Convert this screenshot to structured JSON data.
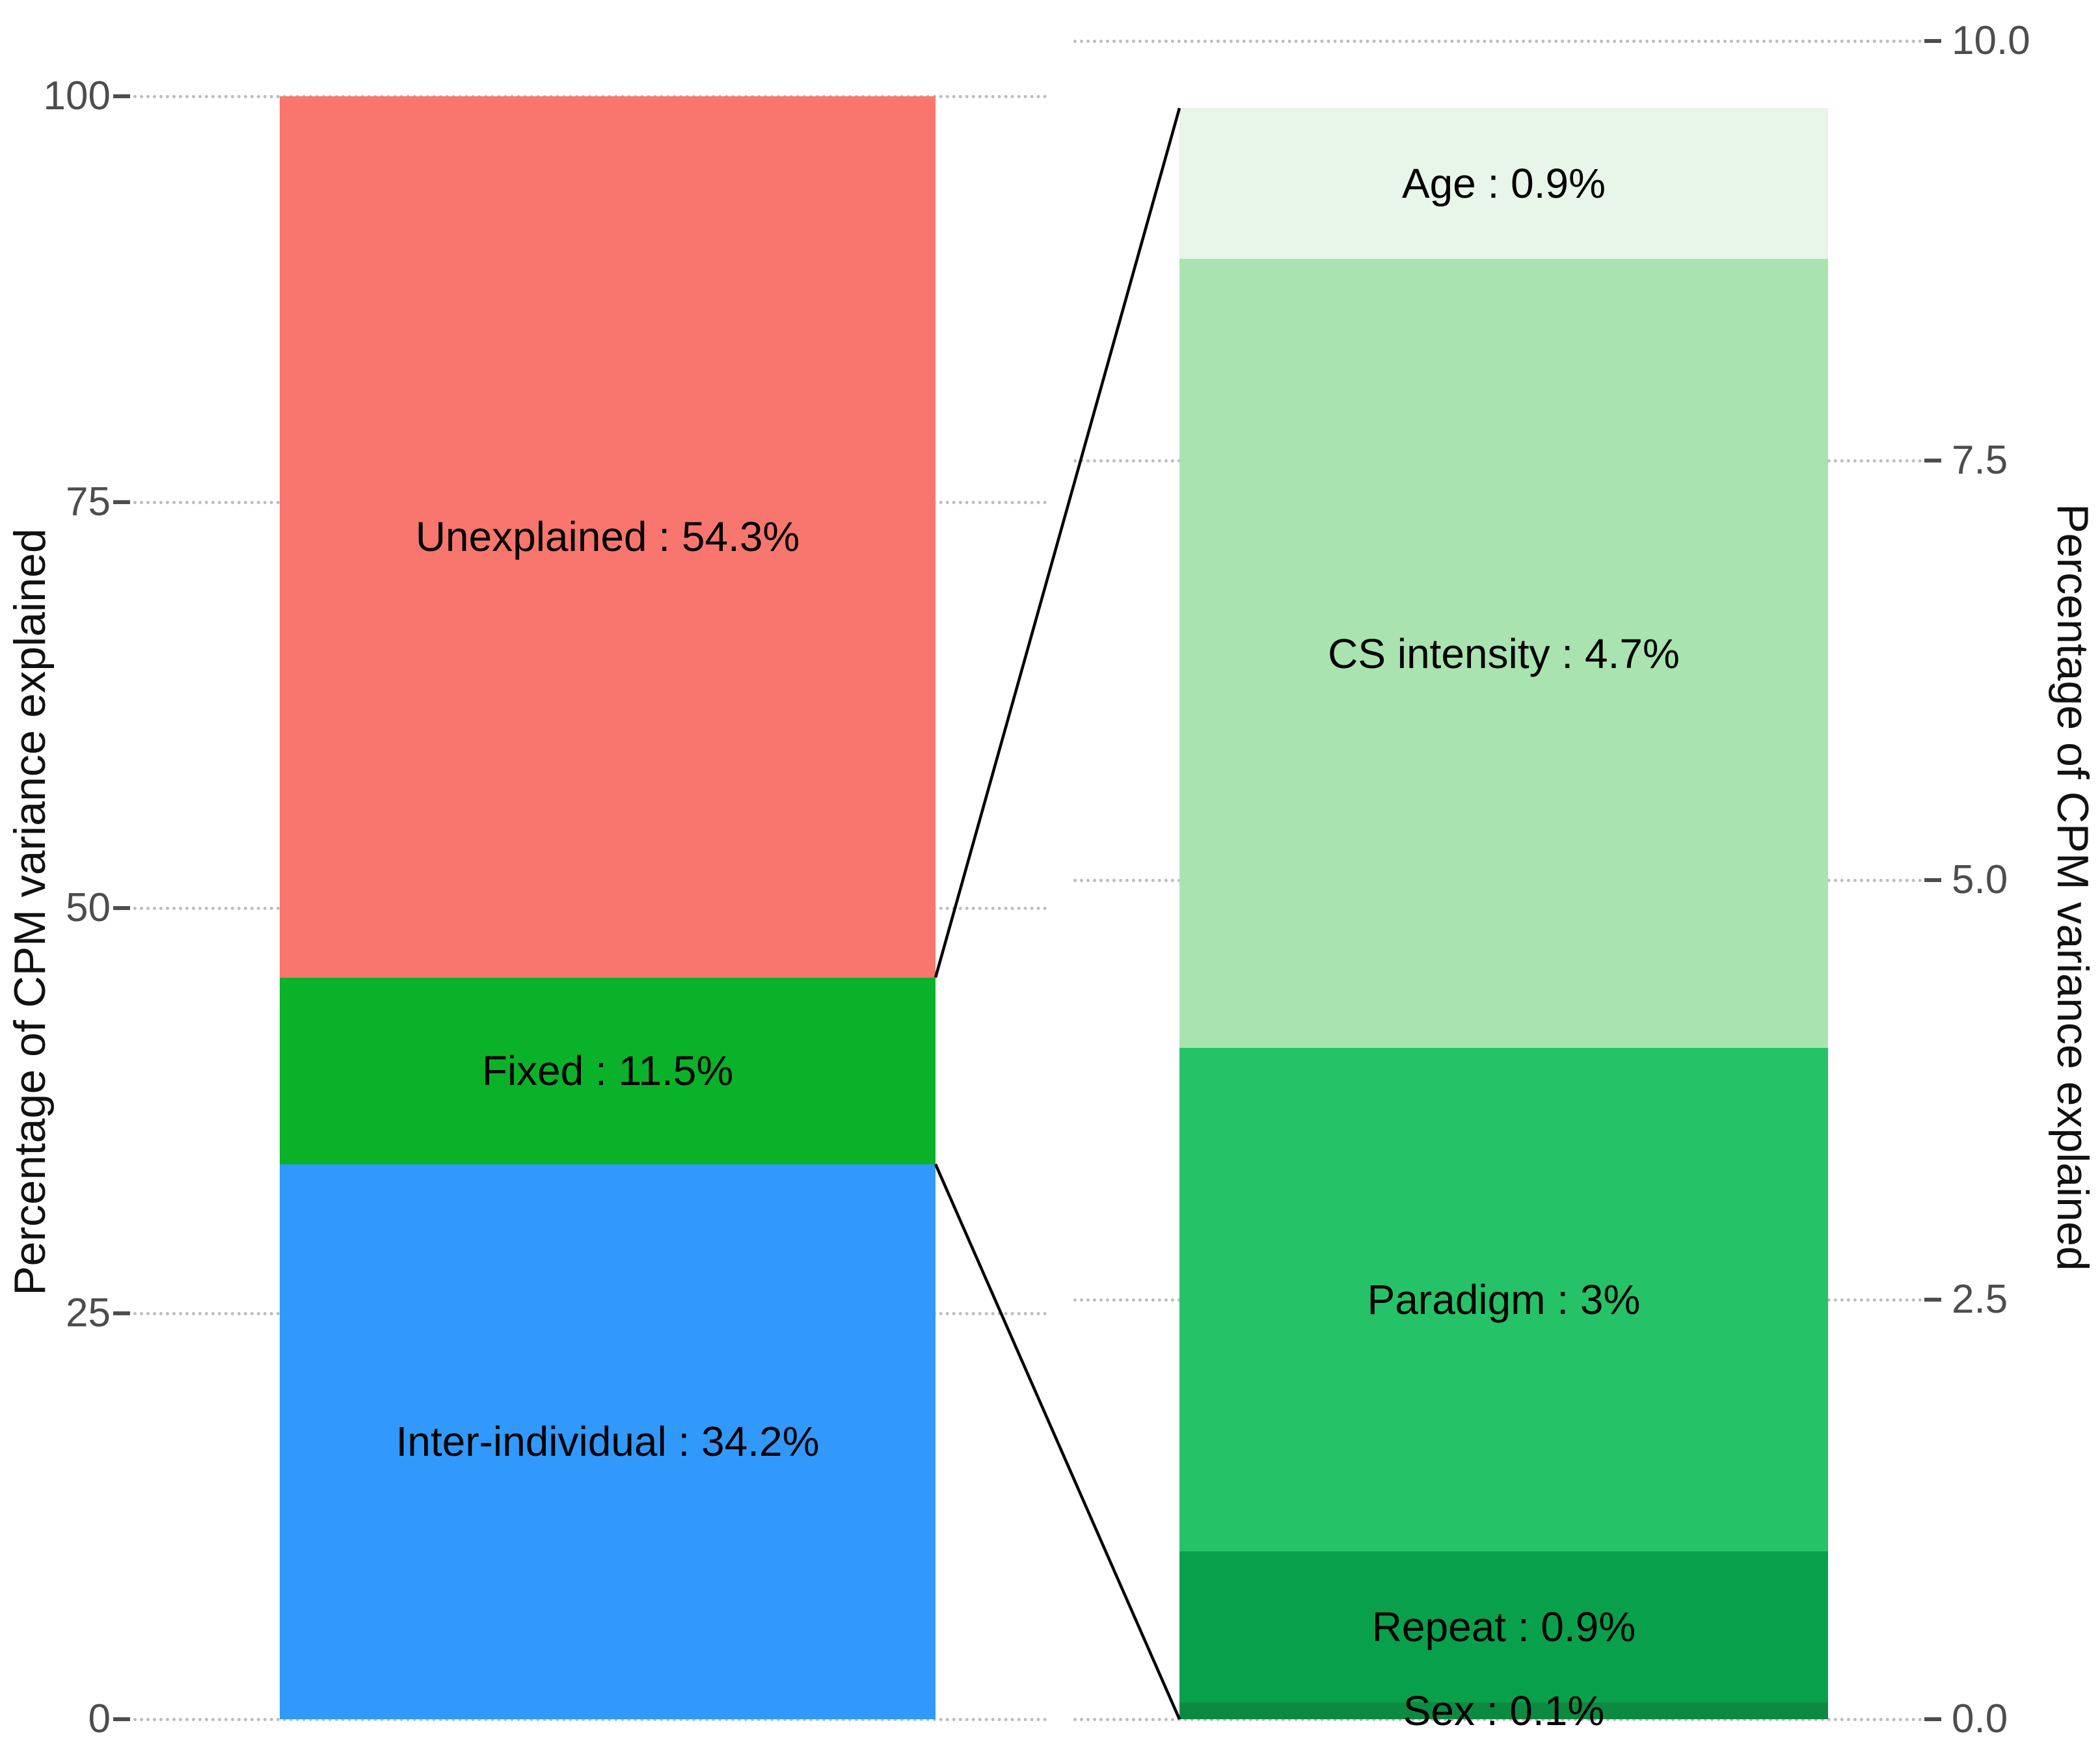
{
  "chart_data": {
    "type": "bar",
    "subtype": "stacked_bar_with_zoom_breakdown",
    "title": "",
    "grid": "dotted",
    "gridline_color": "#BDBDBD",
    "connector_color": "#000000",
    "tick_label_color": "#4D4D4D",
    "text_color": "#000000",
    "left_axis": {
      "title": "Percentage of CPM variance explained",
      "range": [
        0,
        100
      ],
      "tick_values": [
        0,
        25,
        50,
        75,
        100
      ],
      "ticks": [
        "0",
        "25",
        "50",
        "75",
        "100"
      ]
    },
    "right_axis": {
      "title": "Percentage of CPM variance explained",
      "range": [
        0,
        10
      ],
      "tick_values": [
        0,
        2.5,
        5,
        7.5,
        10
      ],
      "ticks": [
        "0.0",
        "2.5",
        "5.0",
        "7.5",
        "10.0"
      ]
    },
    "bars": [
      {
        "id": "overall",
        "axis": "left",
        "axis_range": [
          0,
          100
        ],
        "total": 100,
        "segments_top_to_bottom": [
          {
            "name": "Unexplained",
            "value": 54.3,
            "label": "Unexplained : 54.3%",
            "color": "#F8766D"
          },
          {
            "name": "Fixed",
            "value": 11.5,
            "label": "Fixed : 11.5%",
            "color": "#0AB22A"
          },
          {
            "name": "Inter-individual",
            "value": 34.2,
            "label": "Inter-individual : 34.2%",
            "color": "#3199FC"
          }
        ]
      },
      {
        "id": "fixed_breakdown",
        "axis": "right",
        "axis_range": [
          0,
          10
        ],
        "total": 9.6,
        "segments_top_to_bottom": [
          {
            "name": "Age",
            "value": 0.9,
            "label": "Age : 0.9%",
            "color": "#E8F5E9"
          },
          {
            "name": "CS intensity",
            "value": 4.7,
            "label": "CS intensity : 4.7%",
            "color": "#A9E3B0"
          },
          {
            "name": "Paradigm",
            "value": 3,
            "label": "Paradigm : 3%",
            "color": "#26C267"
          },
          {
            "name": "Repeat",
            "value": 0.9,
            "label": "Repeat : 0.9%",
            "color": "#09A04B"
          },
          {
            "name": "Sex",
            "value": 0.1,
            "label": "Sex : 0.1%",
            "color": "#0D8A42"
          }
        ]
      }
    ],
    "connectors": [
      {
        "from": "overall.Fixed.top-right-corner",
        "to": "fixed_breakdown.top-left-corner"
      },
      {
        "from": "overall.Fixed.bottom-right-corner",
        "to": "fixed_breakdown.bottom-left-corner"
      }
    ]
  }
}
